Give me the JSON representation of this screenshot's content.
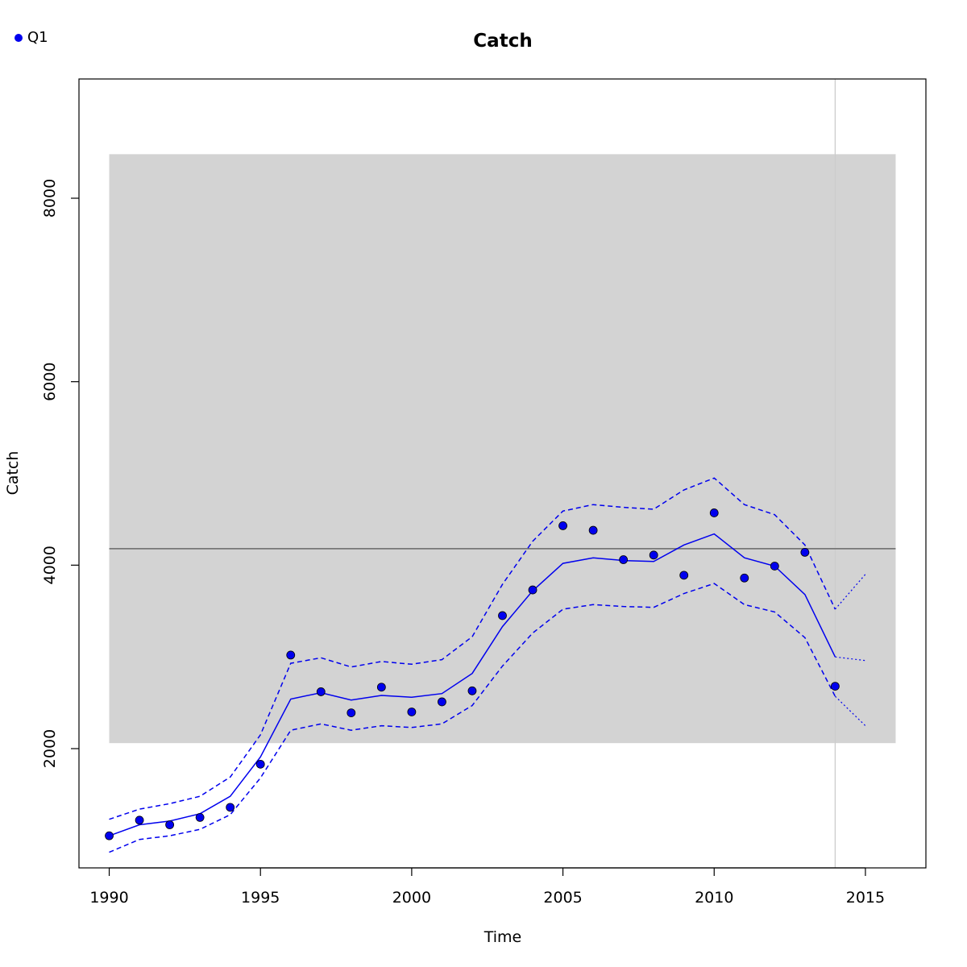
{
  "legend": {
    "label": "Q1",
    "color": "#0000ee"
  },
  "chart_data": {
    "type": "line",
    "title": "Catch",
    "xlabel": "Time",
    "ylabel": "Catch",
    "xlim": [
      1989,
      2017
    ],
    "ylim": [
      700,
      9300
    ],
    "xticks": [
      1990,
      1995,
      2000,
      2005,
      2010,
      2015
    ],
    "yticks": [
      2000,
      4000,
      6000,
      8000
    ],
    "grid": false,
    "legend_position": "top-left",
    "band": {
      "x": [
        1990,
        2016
      ],
      "y": [
        2060,
        8480
      ],
      "color": "#d3d3d3"
    },
    "hline": {
      "y": 4180,
      "color": "#777777"
    },
    "vline": {
      "x": 2014,
      "color": "#cccccc"
    },
    "series": [
      {
        "name": "Q1",
        "kind": "points",
        "color": "#0000ee",
        "x": [
          1990,
          1991,
          1992,
          1993,
          1994,
          1995,
          1996,
          1997,
          1998,
          1999,
          2000,
          2001,
          2002,
          2003,
          2004,
          2005,
          2006,
          2007,
          2008,
          2009,
          2010,
          2011,
          2012,
          2013,
          2014
        ],
        "y": [
          1050,
          1220,
          1170,
          1250,
          1360,
          1830,
          3020,
          2620,
          2390,
          2670,
          2400,
          2510,
          2630,
          3450,
          3730,
          4430,
          4380,
          4060,
          4110,
          3890,
          4570,
          3860,
          3990,
          4140,
          2680
        ]
      },
      {
        "kind": "line",
        "style": "solid",
        "color": "#0000ee",
        "x": [
          1990,
          1991,
          1992,
          1993,
          1994,
          1995,
          1996,
          1997,
          1998,
          1999,
          2000,
          2001,
          2002,
          2003,
          2004,
          2005,
          2006,
          2007,
          2008,
          2009,
          2010,
          2011,
          2012,
          2013,
          2014
        ],
        "y": [
          1050,
          1170,
          1210,
          1290,
          1480,
          1910,
          2540,
          2610,
          2530,
          2580,
          2560,
          2600,
          2820,
          3330,
          3720,
          4020,
          4080,
          4050,
          4040,
          4220,
          4340,
          4080,
          3990,
          3680,
          3000
        ]
      },
      {
        "kind": "line",
        "style": "dashed",
        "color": "#0000ee",
        "x": [
          1990,
          1991,
          1992,
          1993,
          1994,
          1995,
          1996,
          1997,
          1998,
          1999,
          2000,
          2001,
          2002,
          2003,
          2004,
          2005,
          2006,
          2007,
          2008,
          2009,
          2010,
          2011,
          2012,
          2013,
          2014
        ],
        "y": [
          1230,
          1340,
          1400,
          1480,
          1690,
          2150,
          2930,
          2990,
          2890,
          2950,
          2920,
          2970,
          3220,
          3790,
          4260,
          4590,
          4660,
          4630,
          4610,
          4820,
          4950,
          4660,
          4550,
          4220,
          3520
        ]
      },
      {
        "kind": "line",
        "style": "dashed",
        "color": "#0000ee",
        "x": [
          1990,
          1991,
          1992,
          1993,
          1994,
          1995,
          1996,
          1997,
          1998,
          1999,
          2000,
          2001,
          2002,
          2003,
          2004,
          2005,
          2006,
          2007,
          2008,
          2009,
          2010,
          2011,
          2012,
          2013,
          2014
        ],
        "y": [
          870,
          1010,
          1050,
          1120,
          1280,
          1680,
          2200,
          2270,
          2200,
          2250,
          2230,
          2270,
          2470,
          2900,
          3260,
          3520,
          3570,
          3550,
          3540,
          3690,
          3800,
          3570,
          3490,
          3210,
          2570
        ]
      },
      {
        "kind": "line",
        "style": "dotted",
        "color": "#0000ee",
        "x": [
          2014,
          2015
        ],
        "y": [
          3000,
          2960
        ]
      },
      {
        "kind": "line",
        "style": "dotted",
        "color": "#0000ee",
        "x": [
          2014,
          2015
        ],
        "y": [
          3520,
          3900
        ]
      },
      {
        "kind": "line",
        "style": "dotted",
        "color": "#0000ee",
        "x": [
          2014,
          2015
        ],
        "y": [
          2570,
          2250
        ]
      }
    ]
  }
}
